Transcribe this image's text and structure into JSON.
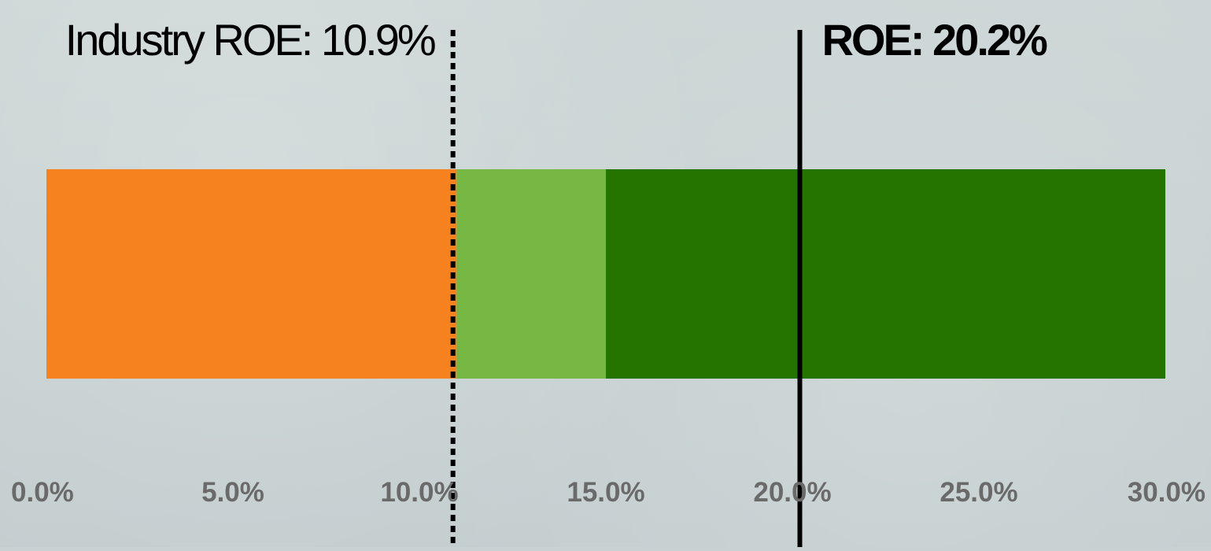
{
  "chart_data": {
    "type": "bar",
    "orientation": "horizontal",
    "stacked": true,
    "xlim": [
      0,
      30
    ],
    "x_ticks": [
      0,
      5,
      10,
      15,
      20,
      25,
      30
    ],
    "x_tick_labels": [
      "0.0%",
      "5.0%",
      "10.0%",
      "15.0%",
      "20.0%",
      "25.0%",
      "30.0%"
    ],
    "grid": false,
    "segments": [
      {
        "start": 0,
        "end": 11,
        "color": "#f5821f"
      },
      {
        "start": 11,
        "end": 15,
        "color": "#76b843"
      },
      {
        "start": 15,
        "end": 30,
        "color": "#267400"
      }
    ],
    "reference_lines": [
      {
        "value": 10.9,
        "label": "Industry ROE: 10.9%",
        "style": "dotted",
        "label_side": "left",
        "bold": false
      },
      {
        "value": 20.2,
        "label": "ROE: 20.2%",
        "style": "solid",
        "label_side": "right",
        "bold": true
      }
    ]
  }
}
